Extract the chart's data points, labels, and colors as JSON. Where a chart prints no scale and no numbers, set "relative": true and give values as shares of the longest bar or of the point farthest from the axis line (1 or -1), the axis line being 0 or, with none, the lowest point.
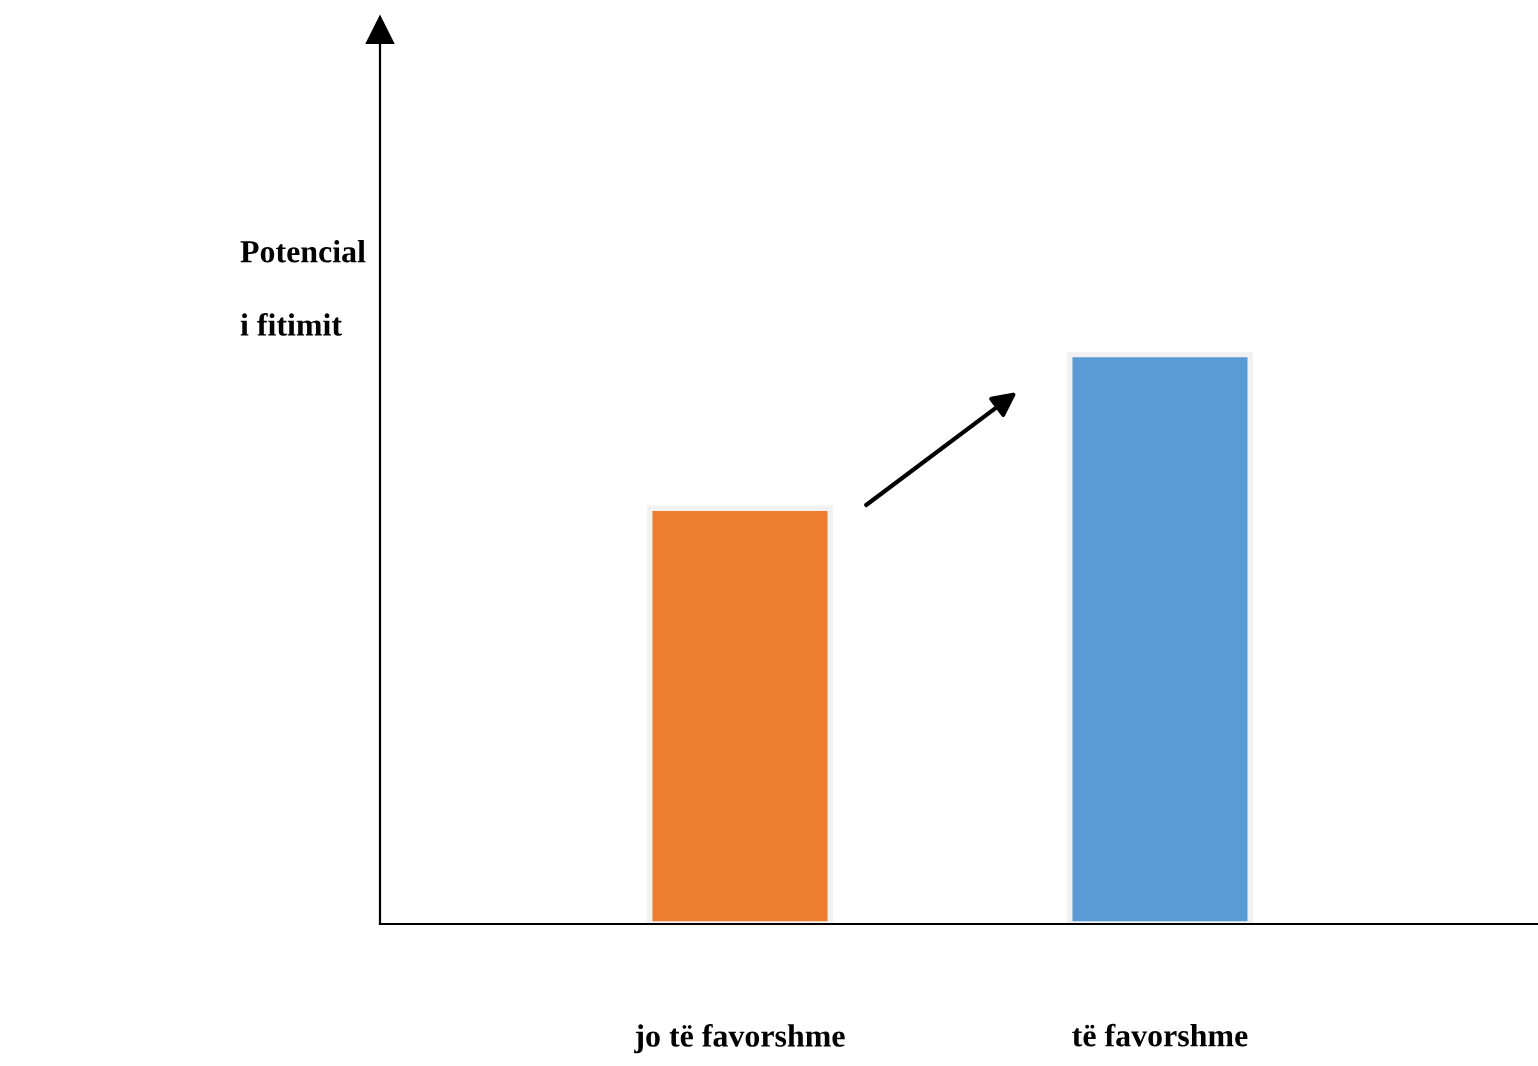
{
  "chart_data": {
    "type": "bar",
    "relative": true,
    "categories": [
      "jo të favorshme",
      "të favorshme"
    ],
    "values": [
      0.73,
      1
    ],
    "colors": [
      "#ed7d31",
      "#5b9bd5"
    ],
    "ylabel": "Potencial\ni fitimit",
    "grid": false,
    "legend": false
  }
}
